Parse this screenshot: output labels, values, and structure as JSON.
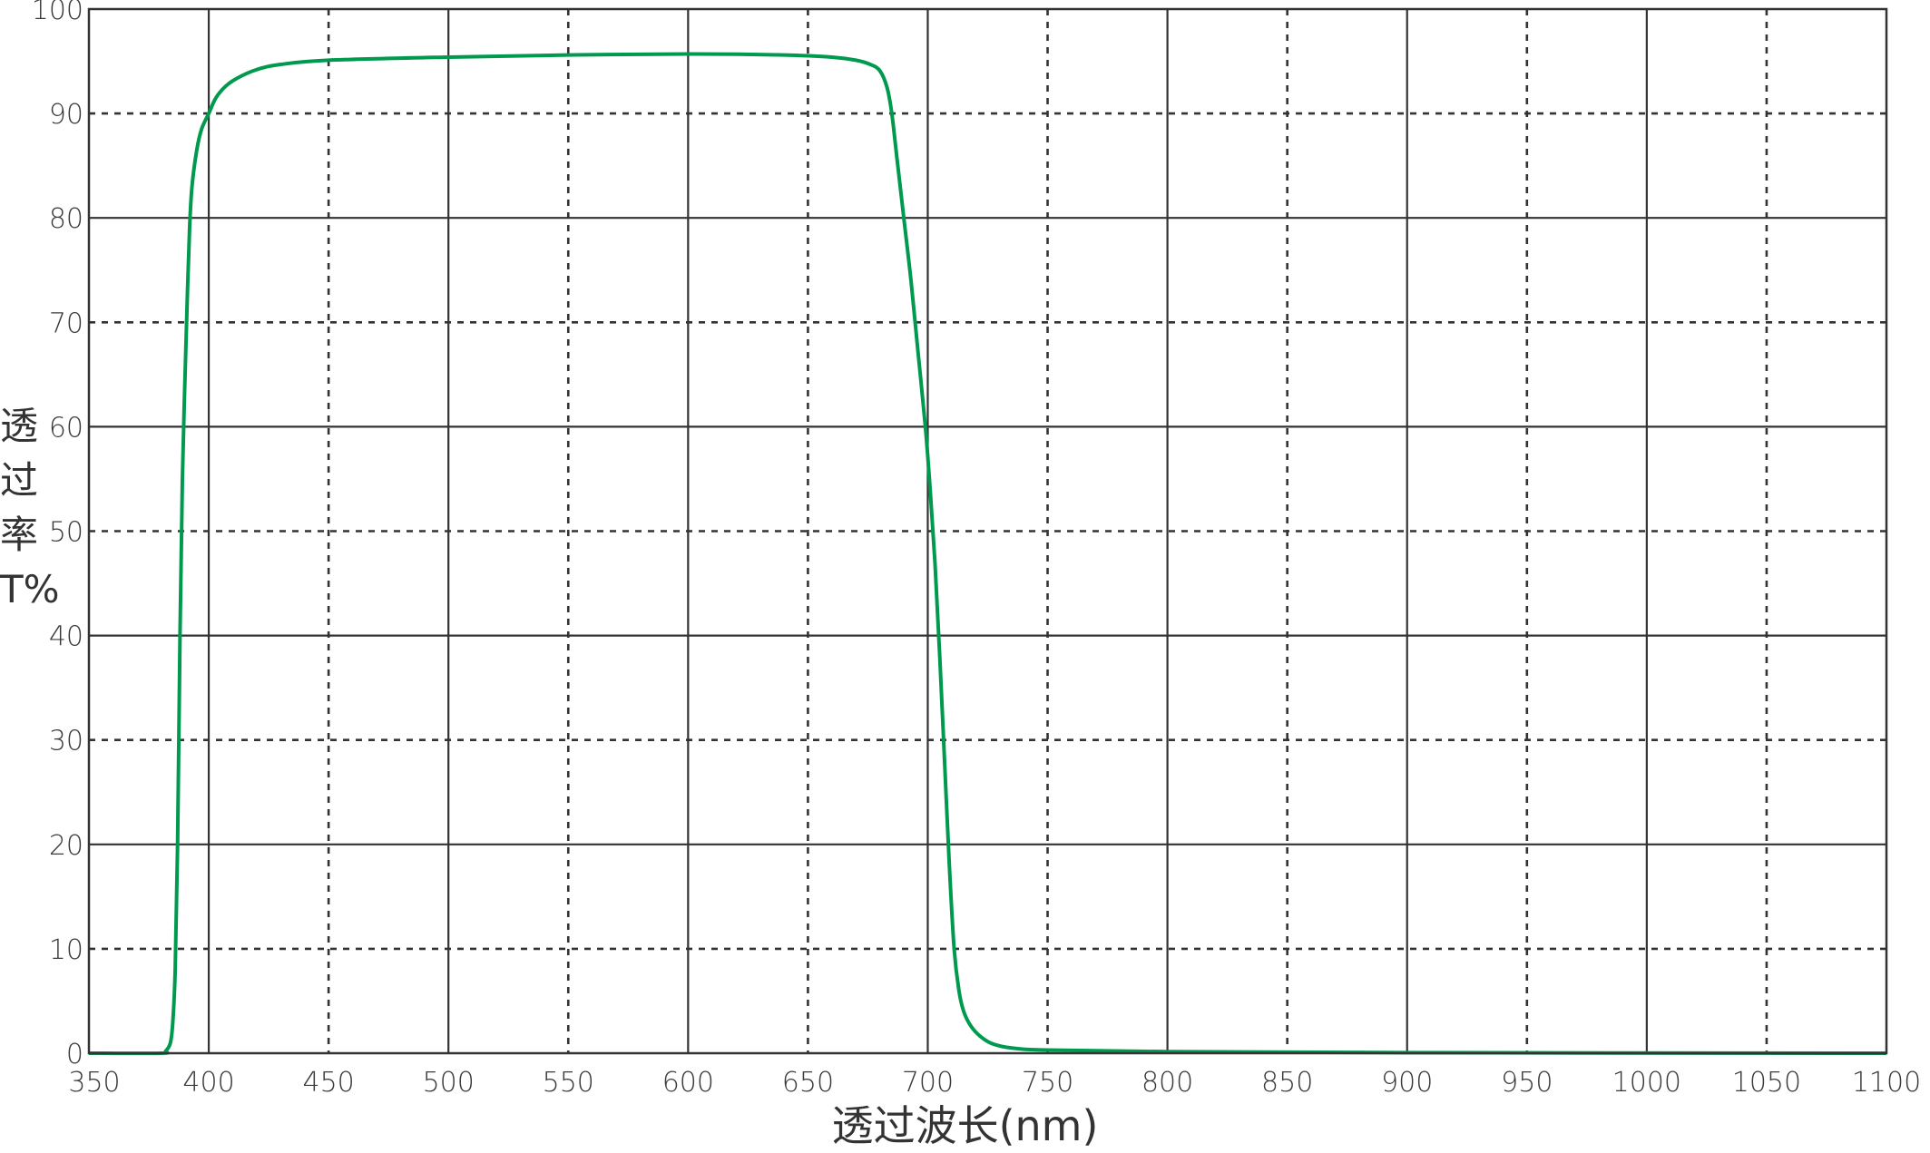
{
  "chart_data": {
    "type": "line",
    "xlabel": "透过波长(nm)",
    "ylabel_chars": [
      "透",
      "过",
      "率",
      "T%"
    ],
    "xlim": [
      350,
      1100
    ],
    "ylim": [
      0,
      100
    ],
    "x_ticks": [
      350,
      400,
      450,
      500,
      550,
      600,
      650,
      700,
      750,
      800,
      850,
      900,
      950,
      1000,
      1050,
      1100
    ],
    "y_ticks": [
      0,
      10,
      20,
      30,
      40,
      50,
      60,
      70,
      80,
      90,
      100
    ],
    "grid": "solid every 100 nm / 20%, dashed at intermediate 50 nm / 10%",
    "line_color": "#009a4e",
    "series": [
      {
        "x": [
          350,
          380,
          382,
          384,
          385,
          386,
          387,
          388,
          389,
          390,
          391,
          392,
          393,
          395,
          397,
          400,
          403,
          407,
          412,
          420,
          430,
          450,
          500,
          550,
          600,
          640,
          660,
          670,
          676,
          680,
          683,
          685,
          687,
          690,
          693,
          696,
          699,
          701,
          703,
          705,
          707,
          709,
          711,
          713,
          715,
          718,
          722,
          727,
          735,
          750,
          800,
          900,
          1100
        ],
        "y": [
          0,
          0,
          0.2,
          1,
          3,
          8,
          20,
          40,
          55,
          64,
          72,
          79,
          83,
          86.5,
          88.5,
          90,
          91.5,
          92.6,
          93.4,
          94.2,
          94.7,
          95.1,
          95.4,
          95.6,
          95.7,
          95.6,
          95.4,
          95.1,
          94.7,
          94.1,
          92.5,
          90,
          86,
          80,
          74,
          67,
          60,
          54,
          47,
          38,
          28,
          18,
          10,
          6,
          4,
          2.6,
          1.6,
          0.9,
          0.5,
          0.3,
          0.15,
          0.05,
          0
        ]
      }
    ]
  }
}
